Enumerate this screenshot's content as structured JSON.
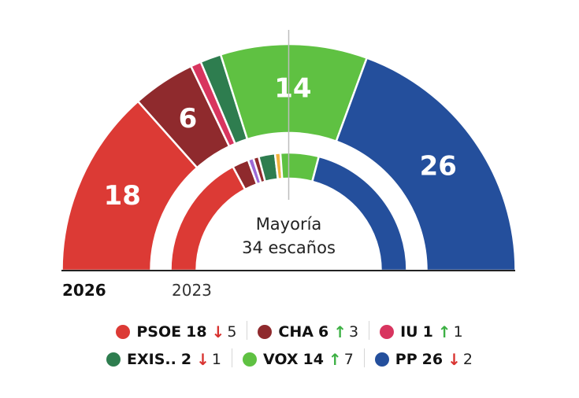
{
  "chart_data": {
    "type": "parliament",
    "total_seats": 67,
    "majority_label": "Mayoría",
    "majority_seats_label": "34 escaños",
    "years": {
      "current": "2026",
      "previous": "2023"
    },
    "series": [
      {
        "key": "psoe",
        "name": "PSOE",
        "color": "#dc3a35",
        "seats_2026": 18,
        "seats_2023": 23,
        "change": 5,
        "direction": "down"
      },
      {
        "key": "cha",
        "name": "CHA",
        "color": "#8f2a2d",
        "seats_2026": 6,
        "seats_2023": 3,
        "change": 3,
        "direction": "up"
      },
      {
        "key": "iu",
        "name": "IU",
        "color": "#d8355f",
        "seats_2026": 1,
        "seats_2023": 0,
        "change": 1,
        "direction": "up"
      },
      {
        "key": "exis",
        "name": "EXIS..",
        "color": "#2e7d4f",
        "seats_2026": 2,
        "seats_2023": 3,
        "change": 1,
        "direction": "down"
      },
      {
        "key": "vox",
        "name": "VOX",
        "color": "#5fc142",
        "seats_2026": 14,
        "seats_2023": 7,
        "change": 7,
        "direction": "up"
      },
      {
        "key": "pp",
        "name": "PP",
        "color": "#244f9c",
        "seats_2026": 26,
        "seats_2023": 28,
        "change": 2,
        "direction": "down"
      }
    ],
    "inner_2023": [
      {
        "party": "psoe",
        "color": "#dc3a35",
        "seats": 23
      },
      {
        "party": "cha",
        "color": "#8f2a2d",
        "seats": 3
      },
      {
        "party": "other",
        "color": "#9c6ad6",
        "seats": 1
      },
      {
        "party": "other",
        "color": "#8f2a2d",
        "seats": 1
      },
      {
        "party": "exis",
        "color": "#2e7d4f",
        "seats": 3
      },
      {
        "party": "other",
        "color": "#f2b33d",
        "seats": 1
      },
      {
        "party": "vox",
        "color": "#5fc142",
        "seats": 7
      },
      {
        "party": "pp",
        "color": "#244f9c",
        "seats": 28
      }
    ],
    "legend_rows": [
      [
        "psoe",
        "cha",
        "iu"
      ],
      [
        "exis",
        "vox",
        "pp"
      ]
    ]
  }
}
